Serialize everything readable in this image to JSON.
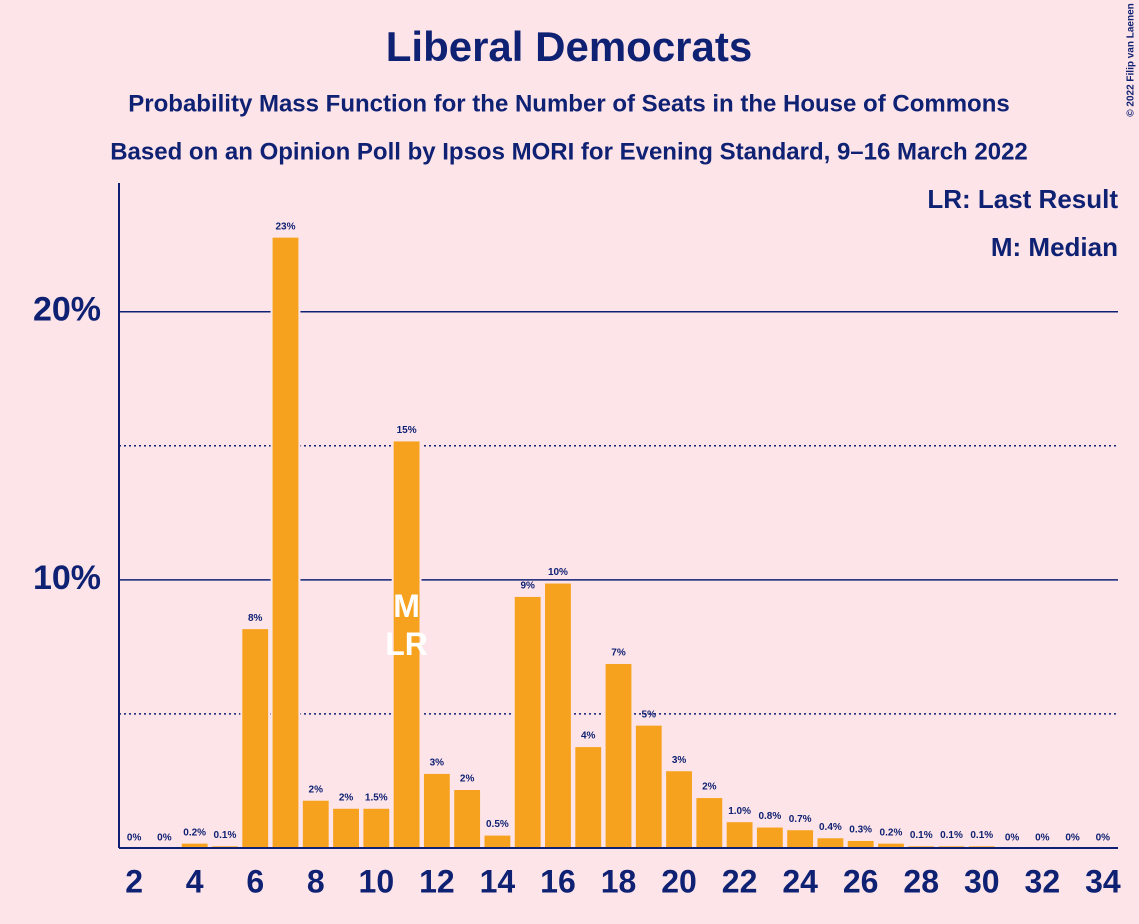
{
  "chart_data": {
    "type": "bar",
    "title": "Liberal Democrats",
    "subtitle": "Probability Mass Function for the Number of Seats in the House of Commons",
    "subtitle2": "Based on an Opinion Poll by Ipsos MORI for Evening Standard, 9–16 March 2022",
    "copyright": "© 2022 Filip van Laenen",
    "legend": [
      "LR: Last Result",
      "M: Median"
    ],
    "annotations": [
      {
        "x": 11,
        "text": "M"
      },
      {
        "x": 11,
        "text": "LR"
      }
    ],
    "x": [
      2,
      3,
      4,
      5,
      6,
      7,
      8,
      9,
      10,
      11,
      12,
      13,
      14,
      15,
      16,
      17,
      18,
      19,
      20,
      21,
      22,
      23,
      24,
      25,
      26,
      27,
      28,
      29,
      30,
      31,
      32,
      33,
      34
    ],
    "values": [
      0,
      0,
      0.2,
      0.1,
      8.2,
      22.8,
      1.8,
      1.5,
      1.5,
      15.2,
      2.8,
      2.2,
      0.5,
      9.4,
      9.9,
      3.8,
      6.9,
      4.6,
      2.9,
      1.9,
      1.0,
      0.8,
      0.7,
      0.4,
      0.3,
      0.2,
      0.1,
      0.1,
      0.1,
      0,
      0,
      0,
      0
    ],
    "value_labels": [
      "0%",
      "0%",
      "0.2%",
      "0.1%",
      "8%",
      "23%",
      "2%",
      "2%",
      "1.5%",
      "15%",
      "3%",
      "2%",
      "0.5%",
      "9%",
      "10%",
      "4%",
      "7%",
      "5%",
      "3%",
      "2%",
      "1.0%",
      "0.8%",
      "0.7%",
      "0.4%",
      "0.3%",
      "0.2%",
      "0.1%",
      "0.1%",
      "0.1%",
      "0%",
      "0%",
      "0%",
      "0%"
    ],
    "color": "#f7a21e",
    "xlim": [
      1.5,
      34.5
    ],
    "xticks": [
      2,
      4,
      6,
      8,
      10,
      12,
      14,
      16,
      18,
      20,
      22,
      24,
      26,
      28,
      30,
      32,
      34
    ],
    "ylim": [
      0,
      24.8
    ],
    "yticks": [
      {
        "value": 10,
        "label": "10%"
      },
      {
        "value": 20,
        "label": "20%"
      }
    ],
    "yminor": [
      5,
      15
    ],
    "grid": true
  }
}
